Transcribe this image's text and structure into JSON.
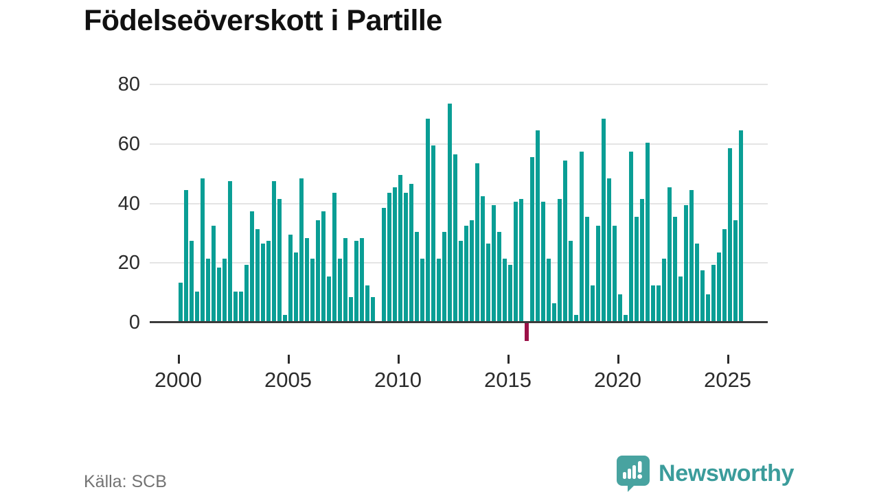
{
  "title": "Födelseöverskott i Partille",
  "source_label": "Källa: SCB",
  "brand": {
    "name": "Newsworthy"
  },
  "colors": {
    "bar_positive": "#0a9e95",
    "bar_negative": "#9c1148",
    "axis_line": "#3b3b3b",
    "gridline": "#e4e4e4",
    "tick_label": "#2b2b2b",
    "source_text": "#737373",
    "brand_teal": "#3b9c9b",
    "logo_teal": "#48a3a0",
    "background": "#ffffff"
  },
  "chart_data": {
    "type": "bar",
    "title": "Födelseöverskott i Partille",
    "frequency": "quarterly",
    "x_start": "2000-Q1",
    "x_end": "2025-Q3",
    "x_tick_labels": [
      "2000",
      "2005",
      "2010",
      "2015",
      "2020",
      "2025"
    ],
    "y_ticks": [
      0,
      20,
      40,
      60,
      80
    ],
    "ylim": [
      -10,
      80
    ],
    "grid": "horizontal",
    "legend": "none",
    "values": [
      13,
      44,
      27,
      10,
      48,
      21,
      32,
      18,
      21,
      47,
      10,
      10,
      19,
      37,
      31,
      26,
      27,
      47,
      41,
      2,
      29,
      23,
      48,
      28,
      21,
      34,
      37,
      15,
      43,
      21,
      28,
      8,
      27,
      28,
      12,
      8,
      0,
      38,
      43,
      45,
      49,
      43,
      46,
      30,
      21,
      68,
      59,
      21,
      30,
      73,
      56,
      27,
      32,
      34,
      53,
      42,
      26,
      39,
      30,
      21,
      19,
      40,
      41,
      -6,
      55,
      64,
      40,
      21,
      6,
      41,
      54,
      27,
      2,
      57,
      35,
      12,
      32,
      68,
      48,
      32,
      9,
      2,
      57,
      35,
      41,
      60,
      12,
      12,
      21,
      45,
      35,
      15,
      39,
      44,
      26,
      17,
      9,
      19,
      23,
      31,
      58,
      34,
      64
    ]
  }
}
